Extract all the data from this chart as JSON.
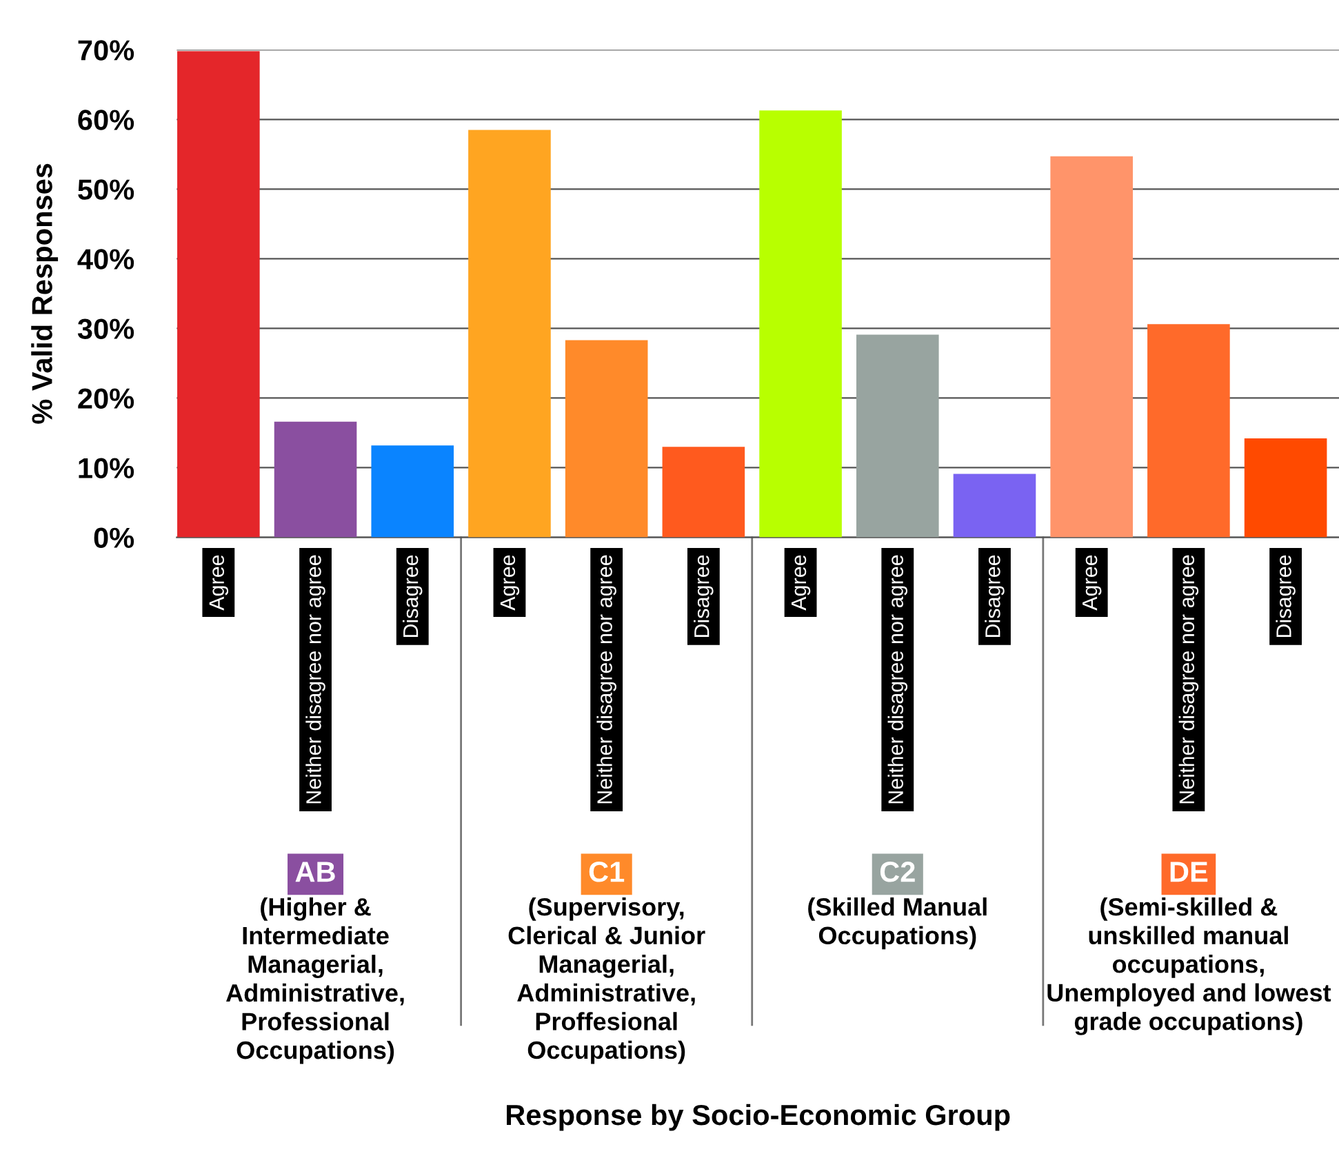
{
  "chart_data": {
    "type": "bar",
    "categories": [
      "Agree",
      "Neither disagree nor agree",
      "Disagree",
      "Agree",
      "Neither disagree nor agree",
      "Disagree",
      "Agree",
      "Neither disagree nor agree",
      "Disagree",
      "Agree",
      "Neither disagree nor agree",
      "Disagree"
    ],
    "values": [
      69.8,
      16.6,
      13.2,
      58.5,
      28.3,
      13.0,
      61.3,
      29.1,
      9.1,
      54.7,
      30.6,
      14.2
    ],
    "colors": [
      "#e4262a",
      "#8a4fa0",
      "#0a84ff",
      "#ffa521",
      "#ff8a2a",
      "#ff5a1e",
      "#b8ff00",
      "#98a4a0",
      "#7a63f2",
      "#ff946a",
      "#ff6a2a",
      "#ff4a00"
    ],
    "ylabel": "% Valid Responses",
    "ylim": [
      0,
      70
    ],
    "yticks": [
      {
        "value": 0,
        "label": "0%"
      },
      {
        "value": 10,
        "label": "10%"
      },
      {
        "value": 20,
        "label": "20%"
      },
      {
        "value": 30,
        "label": "30%"
      },
      {
        "value": 40,
        "label": "40%"
      },
      {
        "value": 50,
        "label": "50%"
      },
      {
        "value": 60,
        "label": "60%"
      },
      {
        "value": 70,
        "label": "70%"
      }
    ],
    "grid": "y",
    "annotations": [
      "AB",
      "(Higher & Intermediate Managerial, Administrative, Professional Occupations)",
      "C1",
      "(Supervisory, Clerical & Junior Managerial, Administrative, Proffesional Occupations)",
      "C2",
      "(Skilled Manual Occupations)",
      "DE",
      "(Semi-skilled & unskilled manual occupations, Unemployed and lowest grade occupations)",
      "Response by Socio-Economic Group"
    ]
  }
}
